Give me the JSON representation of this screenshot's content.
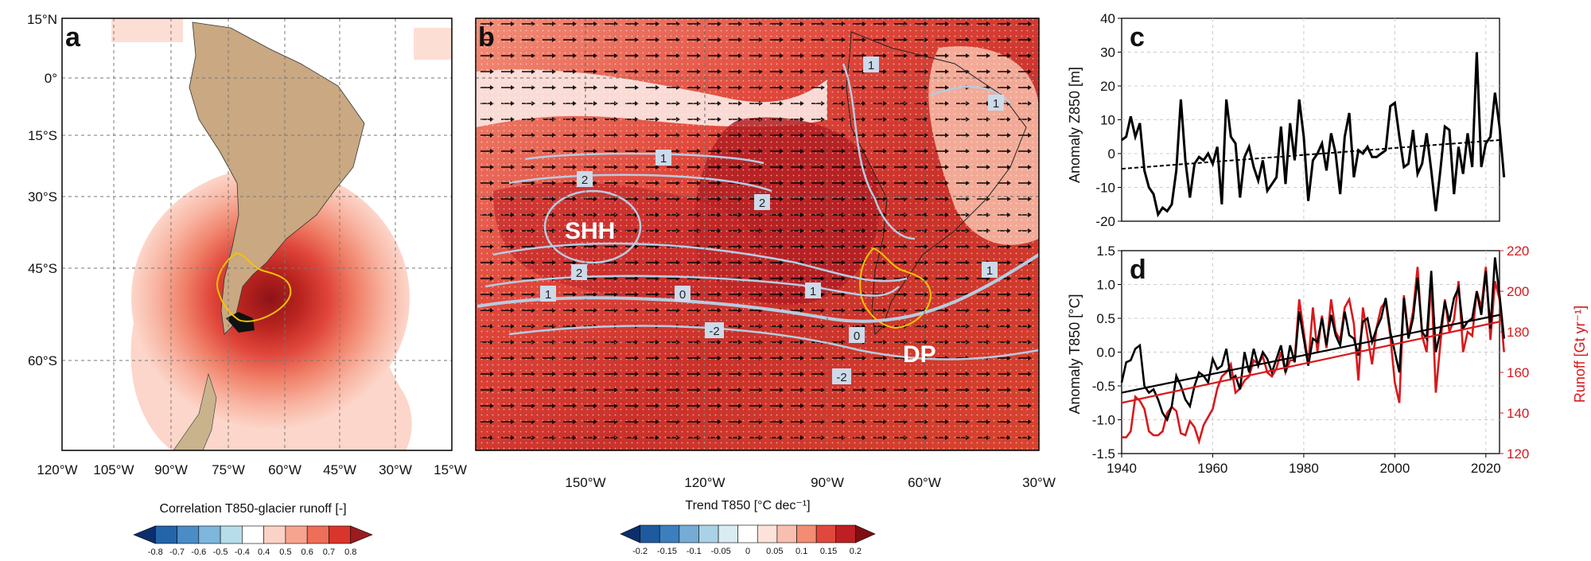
{
  "panels": {
    "a": {
      "label": "a",
      "lat_labels": [
        "15°N",
        "0°",
        "15°S",
        "30°S",
        "45°S",
        "60°S"
      ],
      "lon_labels": [
        "120°W",
        "105°W",
        "90°W",
        "75°W",
        "60°W",
        "45°W",
        "30°W",
        "15°W"
      ],
      "colorbar_title": "Correlation T850-glacier runoff [-]",
      "colorbar_ticks": [
        "-0.8",
        "-0.7",
        "-0.6",
        "-0.5",
        "-0.4",
        "0.4",
        "0.5",
        "0.6",
        "0.7",
        "0.8"
      ],
      "colors": [
        "#0b2f6b",
        "#2464a8",
        "#4a8cc6",
        "#7fb6dc",
        "#b6dde9",
        "#ffffff",
        "#fbd3c6",
        "#f6a48f",
        "#ee6e58",
        "#d9352c",
        "#9b1b1f"
      ]
    },
    "b": {
      "label": "b",
      "lon_labels": [
        "150°W",
        "120°W",
        "90°W",
        "60°W",
        "30°W"
      ],
      "colorbar_title": "Trend T850 [°C dec⁻¹]",
      "colorbar_ticks": [
        "-0.2",
        "-0.15",
        "-0.1",
        "-0.05",
        "0",
        "0.05",
        "0.1",
        "0.15",
        "0.2"
      ],
      "annotations": [
        "SHH",
        "DP"
      ],
      "contour_labels": [
        "1",
        "1",
        "1",
        "2",
        "2",
        "2",
        "1",
        "0",
        "1",
        "-2",
        "0",
        "-2",
        "1"
      ]
    },
    "c": {
      "label": "c",
      "ylabel": "Anomaly Z850 [m]",
      "yticks": [
        "40",
        "30",
        "20",
        "10",
        "0",
        "-10",
        "-20"
      ]
    },
    "d": {
      "label": "d",
      "ylabel": "Anomaly T850 [°C]",
      "ylabel_right": "Runoff [Gt yr⁻¹]",
      "yticks": [
        "1.5",
        "1.0",
        "0.5",
        "0.0",
        "-0.5",
        "-1.0",
        "-1.5"
      ],
      "yticks_right": [
        "220",
        "200",
        "180",
        "160",
        "140",
        "120"
      ],
      "xticks": [
        "1940",
        "1960",
        "1980",
        "2000",
        "2020"
      ]
    }
  },
  "chart_data": [
    {
      "type": "line",
      "panel": "c",
      "ylabel": "Anomaly Z850 [m]",
      "ylim": [
        -20,
        40
      ],
      "xlim": [
        1940,
        2023
      ],
      "grid": true,
      "x_start": 1940,
      "series": [
        {
          "color": "#000000",
          "values": [
            4,
            5,
            11,
            5,
            9,
            -5,
            -10,
            -12,
            -18,
            -16,
            -17,
            -15,
            -5,
            16,
            -2,
            -13,
            -3,
            -1,
            -2,
            0,
            -3,
            2,
            -15,
            16,
            5,
            3,
            -13,
            -1,
            2,
            -4,
            -8,
            -2,
            -11,
            -9,
            -7,
            8,
            -9,
            9,
            -2,
            16,
            5,
            -14,
            -2,
            0,
            3,
            -5,
            6,
            0,
            -12,
            5,
            12,
            -7,
            1,
            0,
            2,
            -1,
            -1,
            0,
            1,
            14,
            15,
            5,
            -4,
            -3,
            7,
            -6,
            -3,
            6,
            -5,
            -17,
            -5,
            8,
            7,
            -12,
            2,
            -6,
            6,
            -4,
            30,
            -4,
            3,
            5,
            18,
            8,
            -7
          ],
          "trend": {
            "start": -4.5,
            "end": 4.0
          }
        }
      ]
    },
    {
      "type": "line",
      "panel": "d",
      "ylabel": "Anomaly T850 [°C]",
      "ylim": [
        -1.5,
        1.5
      ],
      "ylim_right": [
        120,
        220
      ],
      "xlim": [
        1940,
        2023
      ],
      "grid": true,
      "x_start": 1940,
      "series": [
        {
          "axis": "left",
          "color": "#000000",
          "values": [
            -0.45,
            -0.15,
            -0.12,
            0.05,
            0.1,
            -0.5,
            -0.6,
            -0.55,
            -0.7,
            -0.9,
            -1.0,
            -0.8,
            -0.35,
            -0.5,
            -0.7,
            -0.8,
            -0.5,
            -0.3,
            -0.35,
            -0.45,
            -0.1,
            -0.25,
            -0.2,
            0.05,
            -0.4,
            -0.35,
            -0.55,
            0.0,
            -0.3,
            0.05,
            -0.2,
            0.0,
            -0.1,
            -0.3,
            -0.1,
            0.1,
            -0.3,
            0.1,
            -0.15,
            0.6,
            0.2,
            -0.2,
            0.2,
            0.15,
            0.5,
            0.1,
            0.55,
            0.25,
            0.1,
            0.6,
            0.25,
            0.2,
            -0.05,
            0.45,
            0.5,
            0.15,
            0.35,
            0.5,
            0.8,
            0.3,
            0.0,
            -0.3,
            0.8,
            0.2,
            0.5,
            1.1,
            0.3,
            0.2,
            1.2,
            0.0,
            0.3,
            0.75,
            0.45,
            0.8,
            0.95,
            0.35,
            0.45,
            0.5,
            0.9,
            0.55,
            1.2,
            0.35,
            1.4,
            0.85,
            0.2
          ],
          "trend": {
            "start": -0.6,
            "end": 0.55
          }
        },
        {
          "axis": "right",
          "color": "#d7191c",
          "values": [
            128,
            128,
            131,
            148,
            146,
            142,
            131,
            129,
            129,
            131,
            140,
            143,
            141,
            130,
            129,
            136,
            133,
            126,
            134,
            138,
            142,
            152,
            158,
            160,
            164,
            150,
            152,
            156,
            158,
            166,
            164,
            168,
            160,
            158,
            162,
            170,
            160,
            166,
            166,
            196,
            180,
            164,
            192,
            170,
            188,
            172,
            196,
            180,
            176,
            192,
            196,
            184,
            156,
            192,
            178,
            164,
            182,
            192,
            195,
            178,
            155,
            145,
            198,
            178,
            190,
            212,
            178,
            170,
            205,
            150,
            174,
            196,
            180,
            186,
            205,
            170,
            180,
            178,
            200,
            192,
            212,
            176,
            205,
            196,
            170
          ],
          "trend": {
            "start": 145,
            "end": 185
          }
        }
      ]
    }
  ]
}
